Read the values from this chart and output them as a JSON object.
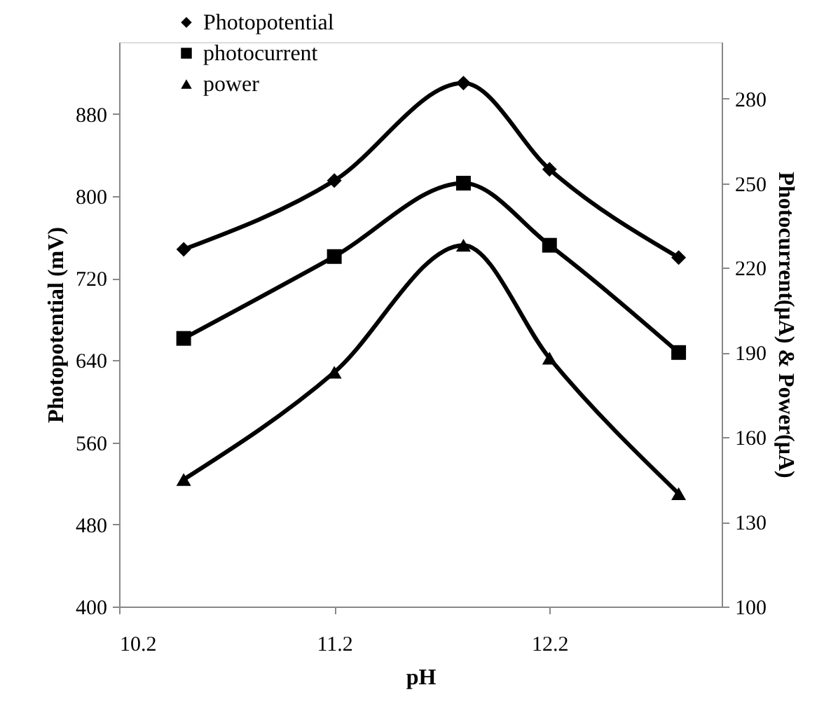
{
  "chart_data": {
    "type": "line",
    "xlabel": "pH",
    "ylabel": "Photopotential (mV)",
    "y2label": "Photocurrent(μA) & Power(μA)",
    "x": [
      10.5,
      11.2,
      11.8,
      12.2,
      12.8
    ],
    "series": [
      {
        "name": "Photopotential",
        "color": "#000000",
        "marker": "diamond",
        "values": [
          748,
          815,
          910,
          826,
          740
        ]
      },
      {
        "name": "photocurrent",
        "color": "#000000",
        "marker": "square",
        "axis": "y2",
        "values": [
          195,
          224,
          250,
          228,
          190
        ]
      },
      {
        "name": "power",
        "color": "#000000",
        "marker": "triangle",
        "axis": "y2",
        "values": [
          145,
          183,
          228,
          188,
          140
        ]
      }
    ],
    "xlim": [
      10.2,
      13.0
    ],
    "xticks": [
      10.2,
      11.2,
      12.2
    ],
    "ylim": [
      400,
      950
    ],
    "yticks": [
      400,
      480,
      560,
      640,
      720,
      800,
      880
    ],
    "y2lim": [
      100,
      300
    ],
    "y2ticks": [
      100,
      130,
      160,
      190,
      220,
      250,
      280
    ],
    "grid": false,
    "legend": "top left",
    "line_style": "solid"
  }
}
